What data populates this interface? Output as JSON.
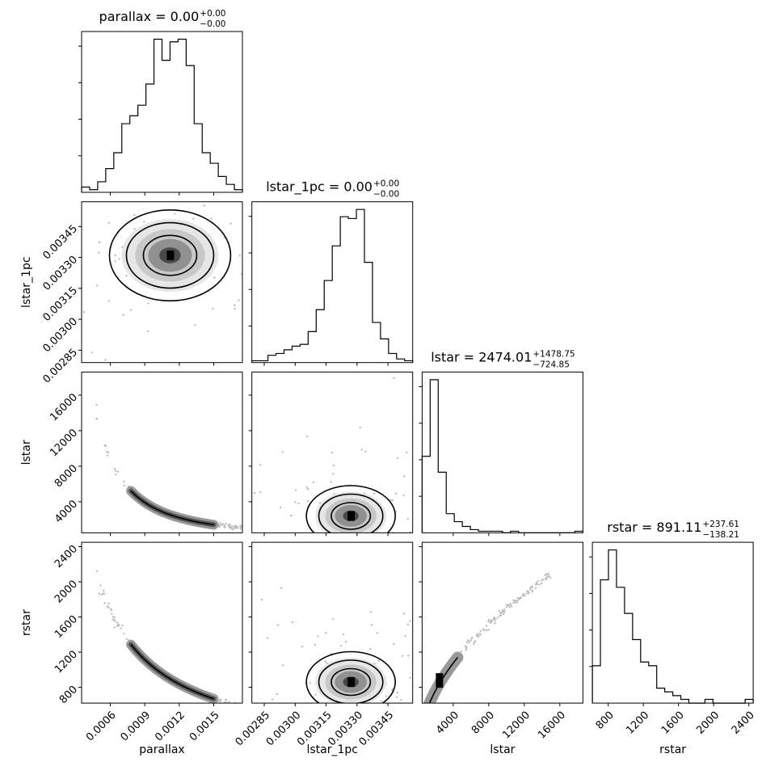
{
  "chart_data": {
    "type": "corner",
    "parameters": [
      "parallax",
      "lstar_1pc",
      "lstar",
      "rstar"
    ],
    "axis_labels": [
      "parallax",
      "lstar_1pc",
      "lstar",
      "rstar"
    ],
    "titles": [
      {
        "name": "parallax",
        "value": "0.00",
        "plus": "+0.00",
        "minus": "−0.00"
      },
      {
        "name": "lstar_1pc",
        "value": "0.00",
        "plus": "+0.00",
        "minus": "−0.00"
      },
      {
        "name": "lstar",
        "value": "2474.01",
        "plus": "+1478.75",
        "minus": "−724.85"
      },
      {
        "name": "rstar",
        "value": "891.11",
        "plus": "+237.61",
        "minus": "−138.21"
      }
    ],
    "ranges": [
      [
        0.00035,
        0.00175
      ],
      [
        0.00279,
        0.00357
      ],
      [
        500,
        18600
      ],
      [
        620,
        2450
      ]
    ],
    "ticks": [
      {
        "values": [
          0.0006,
          0.0009,
          0.0012,
          0.0015
        ],
        "labels": [
          "0.0006",
          "0.0009",
          "0.0012",
          "0.0015"
        ]
      },
      {
        "values": [
          0.00285,
          0.003,
          0.00315,
          0.0033,
          0.00345
        ],
        "labels": [
          "0.00285",
          "0.00300",
          "0.00315",
          "0.00330",
          "0.00345"
        ]
      },
      {
        "values": [
          4000,
          8000,
          12000,
          16000
        ],
        "labels": [
          "4000",
          "8000",
          "12000",
          "16000"
        ]
      },
      {
        "values": [
          800,
          1200,
          1600,
          2000,
          2400
        ],
        "labels": [
          "800",
          "1200",
          "1600",
          "2000",
          "2400"
        ]
      }
    ],
    "histograms": [
      {
        "parameter": "parallax",
        "bins": 20,
        "counts": [
          2,
          1,
          4,
          9,
          15,
          26,
          29,
          33,
          41,
          58,
          50,
          57,
          58,
          48,
          26,
          15,
          11,
          6,
          3,
          1
        ]
      },
      {
        "parameter": "lstar_1pc",
        "bins": 20,
        "counts": [
          1,
          1,
          4,
          5,
          7,
          9,
          10,
          17,
          29,
          45,
          64,
          80,
          79,
          84,
          55,
          22,
          13,
          5,
          2,
          1
        ]
      },
      {
        "parameter": "lstar",
        "bins": 20,
        "counts": [
          48,
          96,
          38,
          12,
          7,
          4,
          2,
          1,
          1,
          1,
          0,
          1,
          0,
          0,
          0,
          0,
          0,
          0,
          0,
          1
        ]
      },
      {
        "parameter": "rstar",
        "bins": 20,
        "counts": [
          10,
          33,
          41,
          31,
          24,
          17,
          11,
          10,
          4,
          3,
          2,
          1,
          0,
          0,
          1,
          0,
          0,
          0,
          0,
          1
        ]
      }
    ],
    "pairs": [
      {
        "x": "parallax",
        "y": "lstar_1pc",
        "relation": "uncorrelated",
        "density_peak": [
          0.00112,
          0.00331
        ],
        "spread": [
          0.00022,
          8e-05
        ]
      },
      {
        "x": "parallax",
        "y": "lstar",
        "relation": "inverse-square",
        "density_peak": [
          0.00115,
          2400
        ]
      },
      {
        "x": "lstar_1pc",
        "y": "lstar",
        "relation": "weak",
        "density_peak": [
          0.00327,
          2400
        ]
      },
      {
        "x": "parallax",
        "y": "rstar",
        "relation": "inverse",
        "density_peak": [
          0.00118,
          850
        ]
      },
      {
        "x": "lstar_1pc",
        "y": "rstar",
        "relation": "weak",
        "density_peak": [
          0.00327,
          860
        ]
      },
      {
        "x": "lstar",
        "y": "rstar",
        "relation": "positive",
        "density_peak": [
          2500,
          850
        ]
      }
    ]
  }
}
